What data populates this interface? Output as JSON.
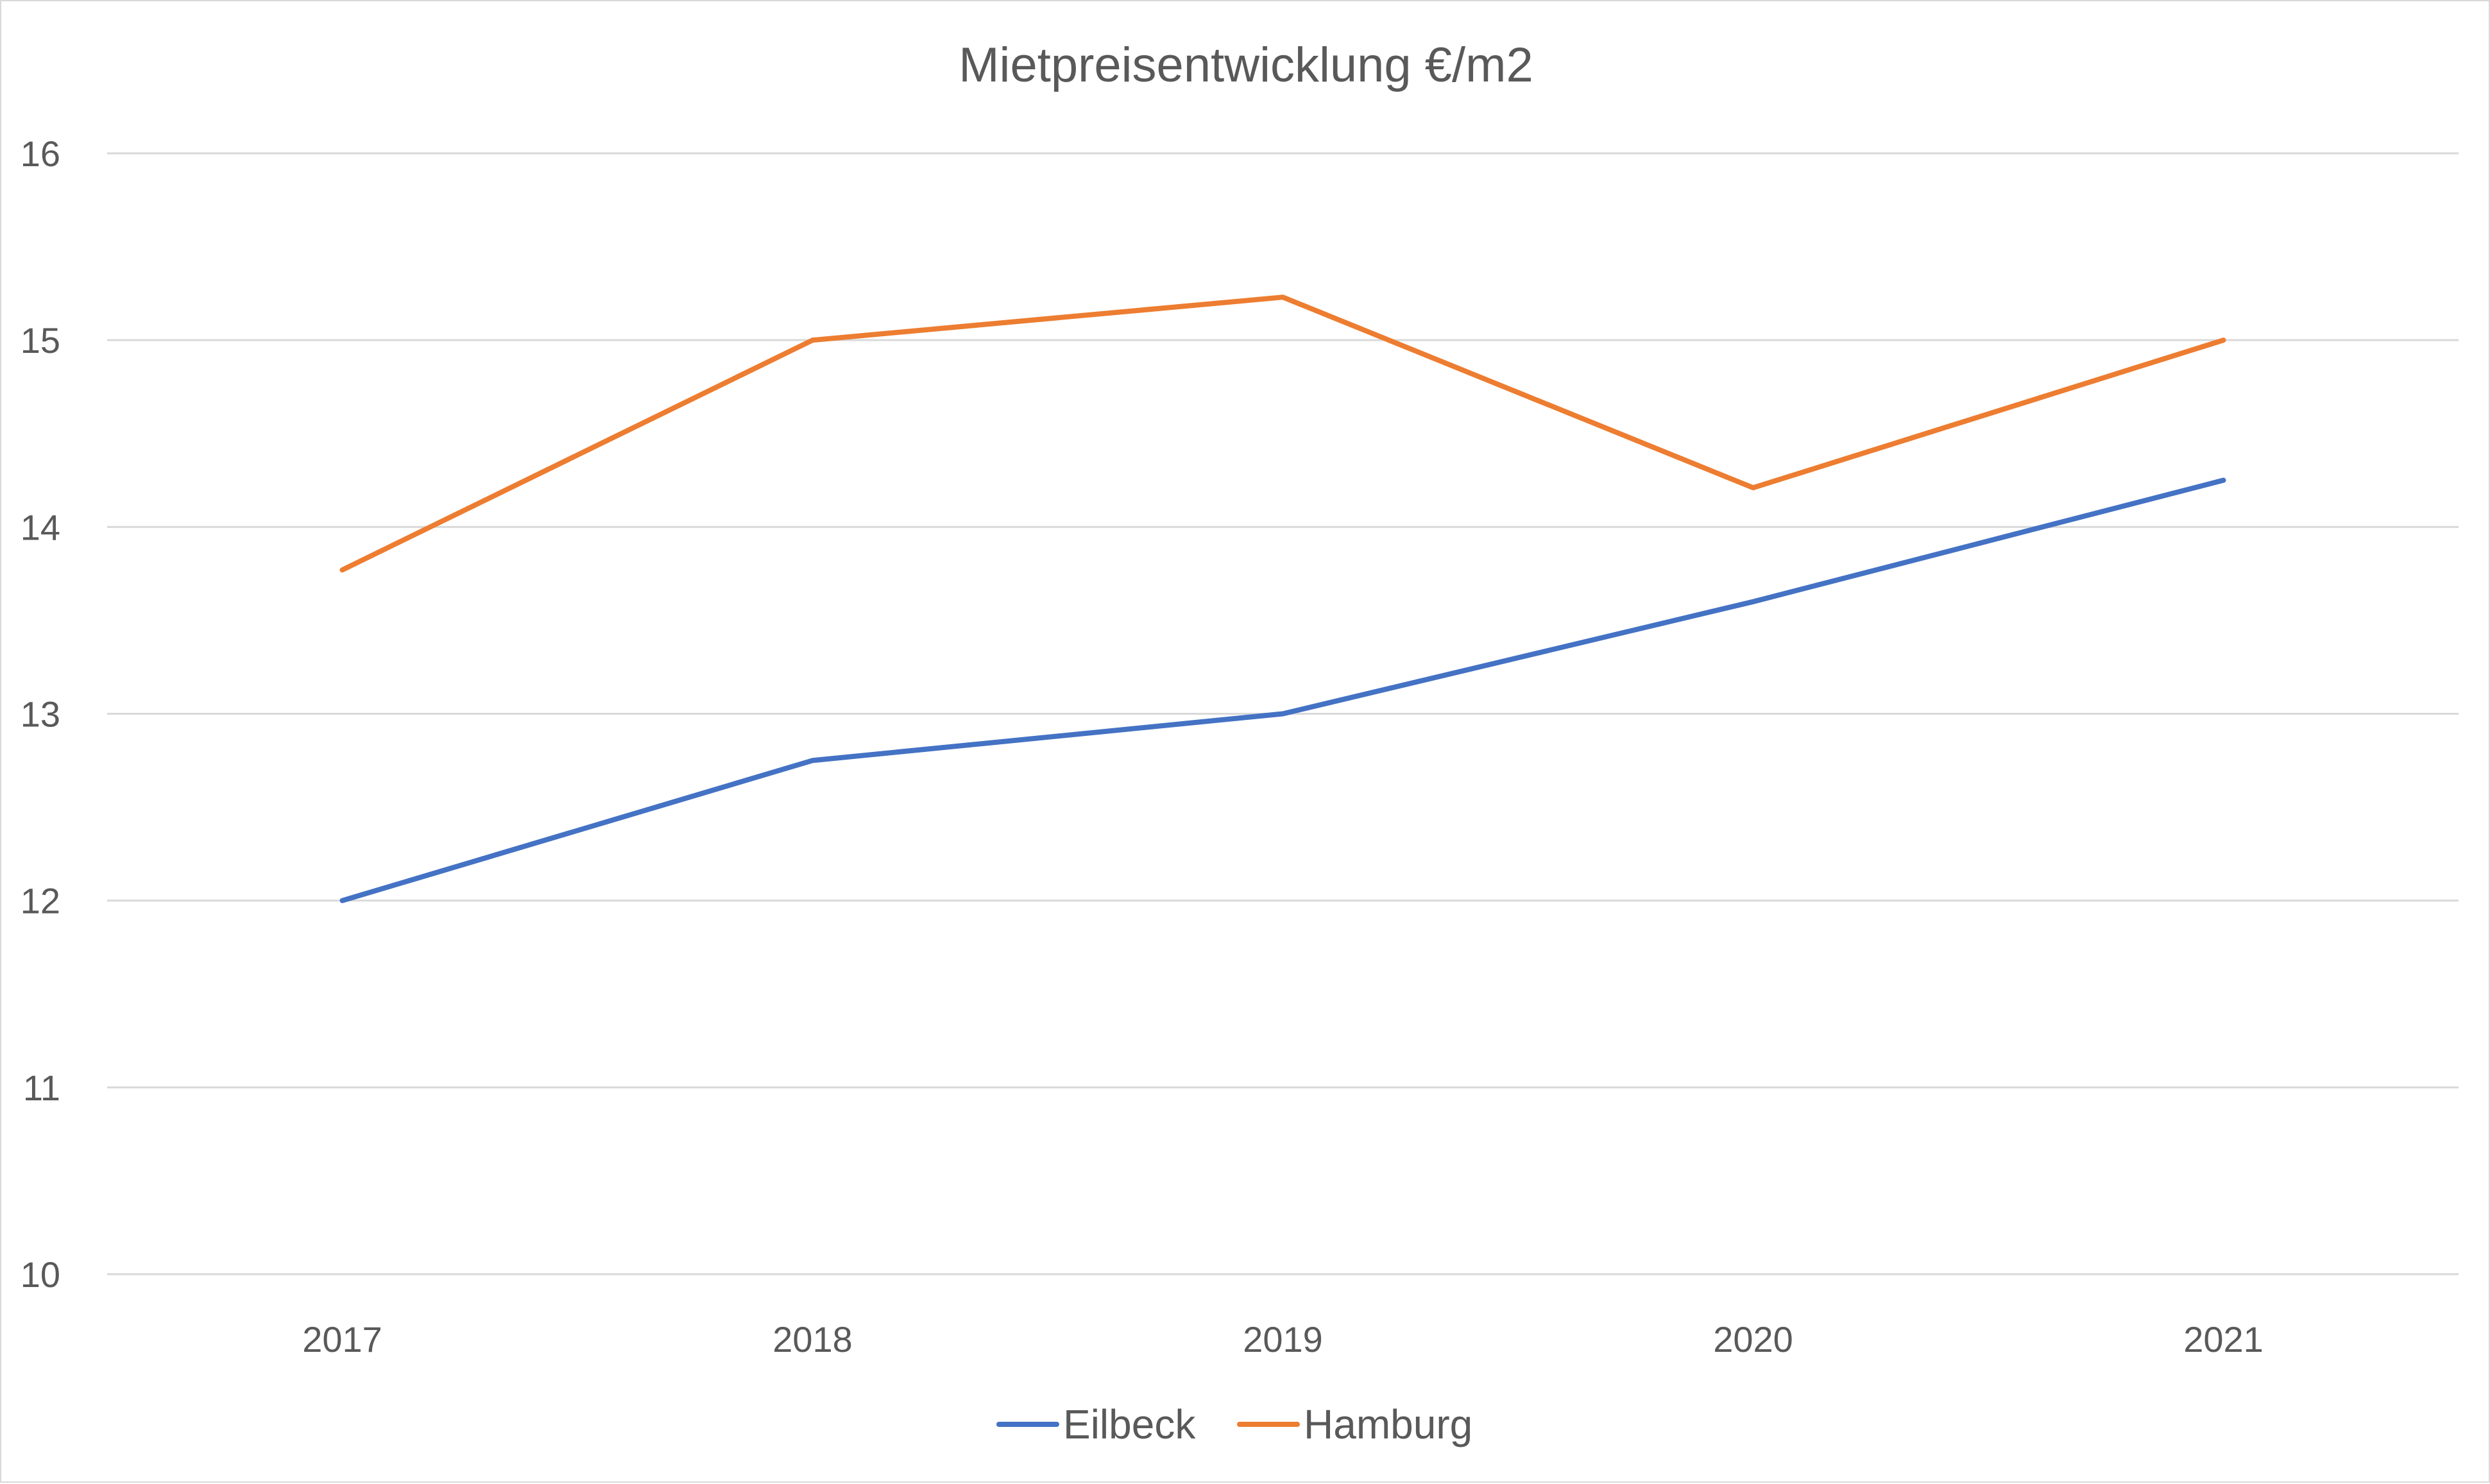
{
  "chart_data": {
    "type": "line",
    "title": "Mietpreisentwicklung  €/m2",
    "xlabel": "",
    "ylabel": "",
    "categories": [
      "2017",
      "2018",
      "2019",
      "2020",
      "2021"
    ],
    "ylim": [
      10,
      16
    ],
    "yticks": [
      10,
      11,
      12,
      13,
      14,
      15,
      16
    ],
    "grid": true,
    "legend_position": "bottom",
    "series": [
      {
        "name": "Eilbeck",
        "color": "#4472c4",
        "values": [
          12.0,
          12.75,
          13.0,
          13.6,
          14.25
        ]
      },
      {
        "name": "Hamburg",
        "color": "#ed7d31",
        "values": [
          13.77,
          15.0,
          15.23,
          14.21,
          15.0
        ]
      }
    ]
  }
}
